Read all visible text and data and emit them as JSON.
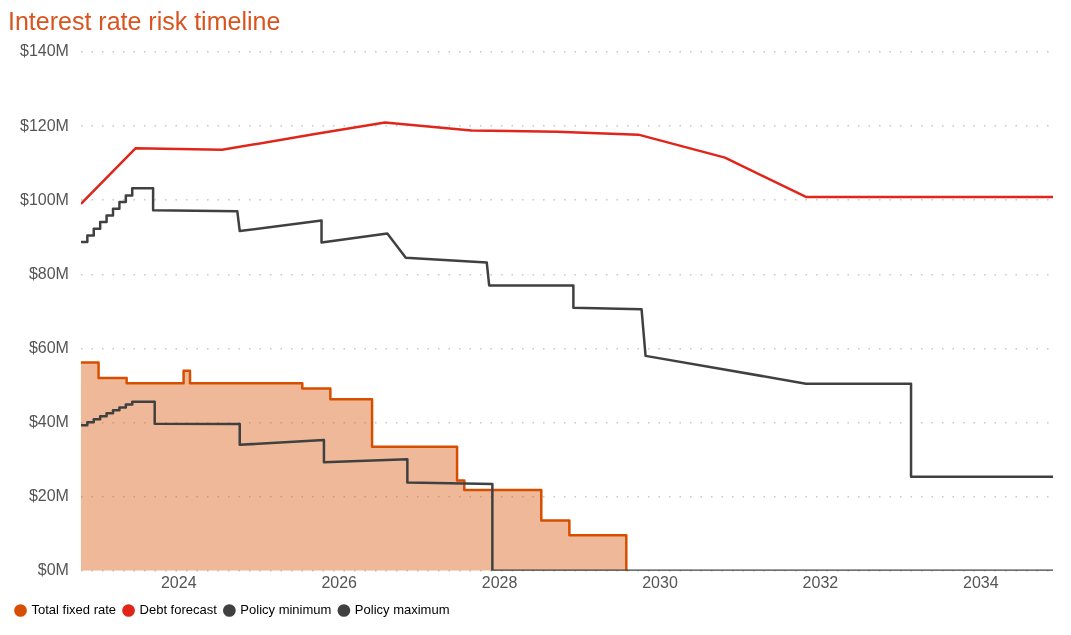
{
  "chart_data": {
    "type": "line",
    "title": "Interest rate risk timeline",
    "xlim": [
      2022.78,
      2034.9
    ],
    "xticks": [
      2024,
      2026,
      2028,
      2030,
      2032,
      2034
    ],
    "ylim": [
      0,
      140
    ],
    "yticks": [
      {
        "value": 0,
        "label": "$0M"
      },
      {
        "value": 20,
        "label": "$20M"
      },
      {
        "value": 40,
        "label": "$40M"
      },
      {
        "value": 60,
        "label": "$60M"
      },
      {
        "value": 80,
        "label": "$80M"
      },
      {
        "value": 100,
        "label": "$100M"
      },
      {
        "value": 120,
        "label": "$120M"
      },
      {
        "value": 140,
        "label": "$140M"
      }
    ],
    "grid": "y",
    "legend": "bottom left",
    "marker": "none",
    "line_style": "solid",
    "series": [
      {
        "name": "Total fixed rate",
        "type": "area",
        "color": "#d64f00",
        "x": [
          2022.78,
          2023.0,
          2023.0,
          2023.35,
          2023.35,
          2024.06,
          2024.06,
          2024.14,
          2024.14,
          2025.54,
          2025.54,
          2025.89,
          2025.89,
          2026.41,
          2026.41,
          2027.47,
          2027.47,
          2027.56,
          2027.56,
          2028.52,
          2028.52,
          2028.87,
          2028.87,
          2029.58,
          2029.58
        ],
        "values": [
          56.2,
          56.2,
          52.0,
          52.0,
          50.6,
          50.6,
          54.0,
          54.0,
          50.6,
          50.6,
          49.2,
          49.2,
          46.3,
          46.3,
          33.5,
          33.5,
          24.4,
          24.4,
          21.8,
          21.8,
          13.6,
          13.6,
          9.6,
          9.6,
          0
        ]
      },
      {
        "name": "Debt forecast",
        "type": "line",
        "color": "#e0261b",
        "x": [
          2022.78,
          2023.46,
          2024.54,
          2025.68,
          2026.57,
          2027.65,
          2028.72,
          2029.73,
          2030.81,
          2031.82,
          2034.9
        ],
        "values": [
          99.0,
          114.0,
          113.6,
          117.8,
          121.0,
          118.8,
          118.5,
          117.7,
          111.5,
          100.9,
          100.9
        ]
      },
      {
        "name": "Policy minimum",
        "type": "line",
        "color": "#404040",
        "x": [
          2022.78,
          2022.86,
          2022.86,
          2022.94,
          2022.94,
          2023.02,
          2023.02,
          2023.1,
          2023.1,
          2023.18,
          2023.18,
          2023.26,
          2023.26,
          2023.34,
          2023.34,
          2023.42,
          2023.42,
          2023.7,
          2023.7,
          2024.76,
          2024.76,
          2025.81,
          2025.81,
          2026.85,
          2026.85,
          2027.91,
          2027.91,
          2034.9
        ],
        "values": [
          39.3,
          39.3,
          40.1,
          40.1,
          40.9,
          40.9,
          41.7,
          41.7,
          42.5,
          42.5,
          43.3,
          43.3,
          44.1,
          44.1,
          44.9,
          44.9,
          45.6,
          45.6,
          39.7,
          39.6,
          34.0,
          35.3,
          29.3,
          30.1,
          23.8,
          23.4,
          0,
          0
        ]
      },
      {
        "name": "Policy maximum",
        "type": "line",
        "color": "#404040",
        "x": [
          2022.78,
          2022.86,
          2022.86,
          2022.94,
          2022.94,
          2023.02,
          2023.02,
          2023.1,
          2023.1,
          2023.18,
          2023.18,
          2023.26,
          2023.26,
          2023.34,
          2023.34,
          2023.42,
          2023.42,
          2023.68,
          2023.68,
          2024.73,
          2024.76,
          2025.78,
          2025.78,
          2026.6,
          2026.83,
          2027.84,
          2027.87,
          2028.92,
          2028.92,
          2029.77,
          2029.82,
          2031.82,
          2033.13,
          2033.13,
          2034.9
        ],
        "values": [
          88.7,
          88.7,
          90.5,
          90.5,
          92.3,
          92.3,
          94.1,
          94.1,
          95.9,
          95.9,
          97.7,
          97.7,
          99.5,
          99.5,
          101.3,
          101.3,
          103.2,
          103.2,
          97.3,
          97.0,
          91.7,
          94.5,
          88.6,
          91.0,
          84.5,
          83.2,
          77.0,
          77.0,
          71.0,
          70.6,
          58.0,
          50.5,
          50.5,
          25.4,
          25.4
        ]
      }
    ]
  }
}
